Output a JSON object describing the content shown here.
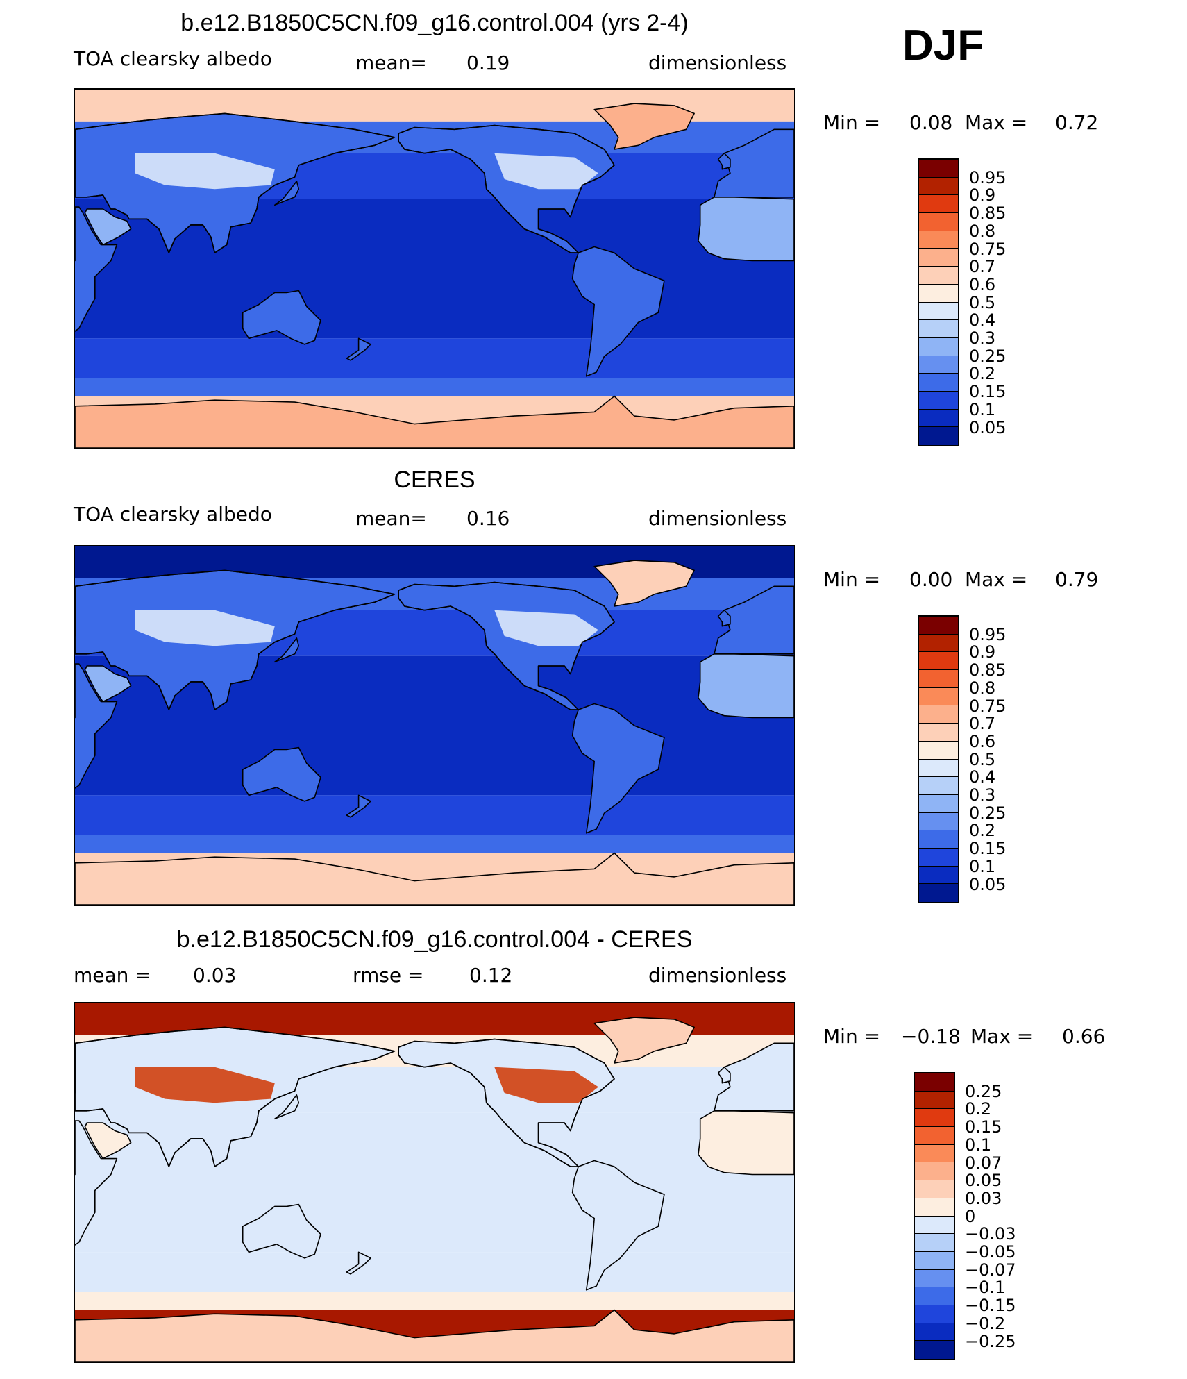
{
  "season_label": "DJF",
  "panels": [
    {
      "id": "model",
      "title": "b.e12.B1850C5CN.f09_g16.control.004 (yrs 2-4)",
      "left_label": "TOA clearsky albedo",
      "stat_label": "mean=",
      "stat_value": "0.19",
      "stat2_label": "",
      "stat2_value": "",
      "units": "dimensionless",
      "min_label": "Min =",
      "min_value": "0.08",
      "max_label": "Max =",
      "max_value": "0.72",
      "colorbar": {
        "levels": [
          "0.95",
          "0.9",
          "0.85",
          "0.8",
          "0.75",
          "0.7",
          "0.6",
          "0.5",
          "0.4",
          "0.3",
          "0.25",
          "0.2",
          "0.15",
          "0.1",
          "0.05"
        ],
        "colors": [
          "#7a0000",
          "#b22200",
          "#e03a10",
          "#f26230",
          "#fa8a58",
          "#fcb08c",
          "#fdd0b8",
          "#fdeee0",
          "#dce9fb",
          "#b6d0f8",
          "#8fb4f5",
          "#6690f0",
          "#3d6be8",
          "#1f45dc",
          "#0a2cc0",
          "#001890"
        ]
      },
      "field": {
        "ocean_tropics": "#0a2cc0",
        "ocean_mid": "#1f45dc",
        "ocean_high": "#3d6be8",
        "polar_north": "#fdd0b8",
        "polar_south": "#fdd0b8",
        "land": "#3d6be8",
        "land_desert": "#8fb4f5",
        "snow": "#dce9fb",
        "antarctica": "#fcb08c"
      }
    },
    {
      "id": "obs",
      "title": "CERES",
      "left_label": "TOA clearsky albedo",
      "stat_label": "mean=",
      "stat_value": "0.16",
      "stat2_label": "",
      "stat2_value": "",
      "units": "dimensionless",
      "min_label": "Min =",
      "min_value": "0.00",
      "max_label": "Max =",
      "max_value": "0.79",
      "colorbar": {
        "levels": [
          "0.95",
          "0.9",
          "0.85",
          "0.8",
          "0.75",
          "0.7",
          "0.6",
          "0.5",
          "0.4",
          "0.3",
          "0.25",
          "0.2",
          "0.15",
          "0.1",
          "0.05"
        ],
        "colors": [
          "#7a0000",
          "#b22200",
          "#e03a10",
          "#f26230",
          "#fa8a58",
          "#fcb08c",
          "#fdd0b8",
          "#fdeee0",
          "#dce9fb",
          "#b6d0f8",
          "#8fb4f5",
          "#6690f0",
          "#3d6be8",
          "#1f45dc",
          "#0a2cc0",
          "#001890"
        ]
      },
      "field": {
        "ocean_tropics": "#0a2cc0",
        "ocean_mid": "#1f45dc",
        "ocean_high": "#3d6be8",
        "polar_north": "#001890",
        "polar_south": "#fdd0b8",
        "land": "#3d6be8",
        "land_desert": "#8fb4f5",
        "snow": "#dce9fb",
        "antarctica": "#fdd0b8"
      }
    },
    {
      "id": "diff",
      "title": "b.e12.B1850C5CN.f09_g16.control.004 - CERES",
      "left_label": "mean =",
      "stat_label": "",
      "stat_value": "0.03",
      "stat2_label": "rmse =",
      "stat2_value": "0.12",
      "units": "dimensionless",
      "min_label": "Min =",
      "min_value": "−0.18",
      "max_label": "Max =",
      "max_value": "0.66",
      "colorbar": {
        "levels": [
          "0.25",
          "0.2",
          "0.15",
          "0.1",
          "0.07",
          "0.05",
          "0.03",
          "0",
          "−0.03",
          "−0.05",
          "−0.07",
          "−0.1",
          "−0.15",
          "−0.2",
          "−0.25"
        ],
        "colors": [
          "#7a0000",
          "#b22200",
          "#e03a10",
          "#f26230",
          "#fa8a58",
          "#fcb08c",
          "#fdd0b8",
          "#fdeee0",
          "#dce9fb",
          "#b6d0f8",
          "#8fb4f5",
          "#6690f0",
          "#3d6be8",
          "#1f45dc",
          "#0a2cc0",
          "#001890"
        ]
      },
      "field": {
        "ocean_tropics": "#dce9fb",
        "ocean_mid": "#dce9fb",
        "ocean_high": "#fdeee0",
        "polar_north": "#a81800",
        "polar_south": "#a81800",
        "land": "#dce9fb",
        "land_desert": "#fdeee0",
        "snow": "#d0400e",
        "antarctica": "#fdd0b8"
      }
    }
  ]
}
